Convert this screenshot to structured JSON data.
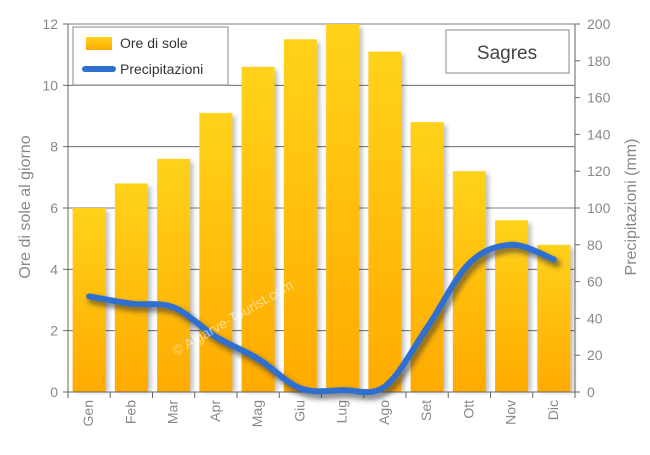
{
  "chart_data": {
    "type": "bar",
    "location_label": "Sagres",
    "watermark": "© Algarve-Tourist.com",
    "categories": [
      "Gen",
      "Feb",
      "Mar",
      "Apr",
      "Mag",
      "Giu",
      "Lug",
      "Ago",
      "Set",
      "Ott",
      "Nov",
      "Dic"
    ],
    "series": [
      {
        "name": "Ore di sole",
        "type": "bar",
        "axis": "left",
        "values": [
          6.0,
          6.8,
          7.6,
          9.1,
          10.6,
          11.5,
          12.0,
          11.1,
          8.8,
          7.2,
          5.6,
          4.8
        ]
      },
      {
        "name": "Precipitazioni",
        "type": "line",
        "axis": "right",
        "values": [
          52,
          48,
          46,
          30,
          18,
          2,
          1,
          3,
          35,
          70,
          80,
          72
        ]
      }
    ],
    "ylabel": "Ore di sole al giorno",
    "y2label": "Precipitazioni (mm)",
    "ylim": [
      0,
      12
    ],
    "y2lim": [
      0,
      200
    ],
    "yticks": [
      "0",
      "2",
      "4",
      "6",
      "8",
      "10",
      "12"
    ],
    "y2ticks": [
      "0",
      "20",
      "40",
      "60",
      "80",
      "100",
      "120",
      "140",
      "160",
      "180",
      "200"
    ],
    "grid": true,
    "legend": "top-left",
    "colors": {
      "bar_top": "#ffd21a",
      "bar_bottom": "#ffaa00",
      "line": "#2e6fcf",
      "line_shadow": "#333333",
      "grid": "#555555",
      "axis_text": "#888888"
    }
  }
}
